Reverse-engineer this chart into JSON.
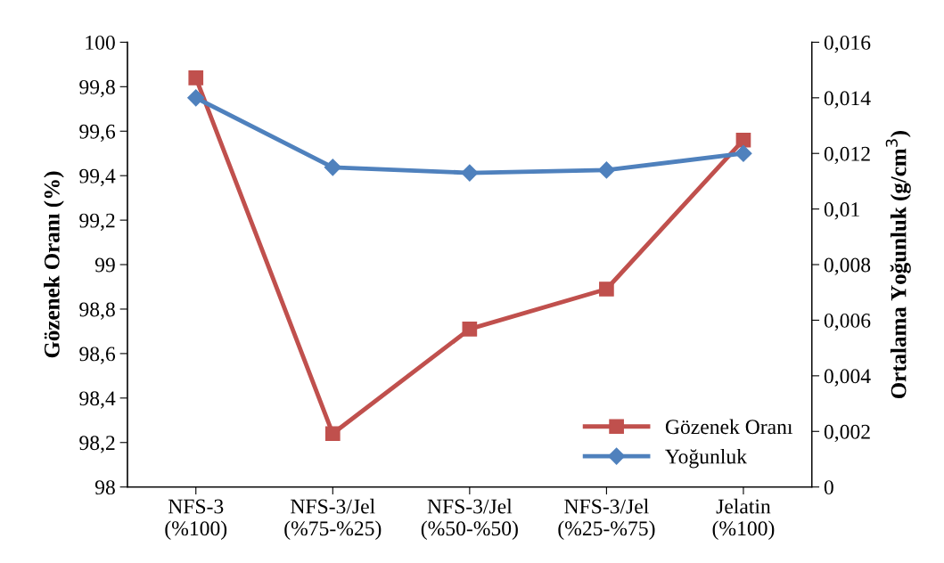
{
  "chart_data": {
    "type": "line",
    "ylabel": "Gözenek Oranı (%)",
    "y2label": "Ortalama Yoğunluk (g/cm$^{3}$)",
    "categories": [
      "NFS-3\n(%100)",
      "NFS-3/Jel\n(%75-%25)",
      "NFS-3/Jel\n(%50-%50)",
      "NFS-3/Jel\n(%25-%75)",
      "Jelatin\n(%100)"
    ],
    "series": [
      {
        "name": "Gözenek Oranı",
        "color": "#c0504d",
        "marker": "square",
        "values": [
          99.84,
          98.24,
          98.71,
          98.89,
          99.56
        ]
      },
      {
        "name": "Yoğunluk",
        "color": "#4f81bd",
        "marker": "diamond",
        "axis": "y2",
        "values": [
          0.014,
          0.0115,
          0.0113,
          0.0114,
          0.012
        ]
      }
    ],
    "ylim": [
      98,
      100
    ],
    "yticks": [
      98,
      {
        "value": 98.2,
        "label": "98,2"
      },
      {
        "value": 98.4,
        "label": "98,4"
      },
      {
        "value": 98.6,
        "label": "98,6"
      },
      {
        "value": 98.8,
        "label": "98,8"
      },
      99,
      {
        "value": 99.2,
        "label": "99,2"
      },
      {
        "value": 99.4,
        "label": "99,4"
      },
      {
        "value": 99.6,
        "label": "99,6"
      },
      {
        "value": 99.8,
        "label": "99,8"
      },
      100
    ],
    "y2lim": [
      0,
      0.016
    ],
    "y2ticks": [
      0,
      {
        "value": 0.002,
        "label": "0,002"
      },
      {
        "value": 0.004,
        "label": "0,004"
      },
      {
        "value": 0.006,
        "label": "0,006"
      },
      {
        "value": 0.008,
        "label": "0,008"
      },
      {
        "value": 0.01,
        "label": "0,01"
      },
      {
        "value": 0.012,
        "label": "0,012"
      },
      {
        "value": 0.014,
        "label": "0,014"
      },
      {
        "value": 0.016,
        "label": "0,016"
      }
    ],
    "grid": false,
    "legend": "bottom right"
  }
}
